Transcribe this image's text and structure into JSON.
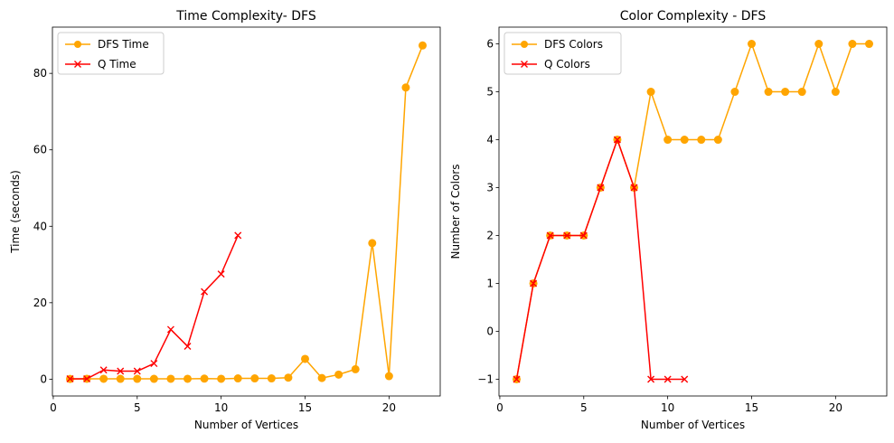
{
  "chart_data": [
    {
      "type": "line",
      "title": "Time Complexity- DFS",
      "xlabel": "Number of Vertices",
      "ylabel": "Time (seconds)",
      "xlim": [
        -0.05,
        23.05
      ],
      "ylim": [
        -4.4,
        92.1
      ],
      "xticks": [
        0,
        5,
        10,
        15,
        20
      ],
      "yticks": [
        0,
        20,
        40,
        60,
        80
      ],
      "grid": false,
      "legend_position": "upper-left",
      "series": [
        {
          "name": "DFS Time",
          "color": "#ffa500",
          "marker": "circle",
          "x": [
            1,
            2,
            3,
            4,
            5,
            6,
            7,
            8,
            9,
            10,
            11,
            12,
            13,
            14,
            15,
            16,
            17,
            18,
            19,
            20,
            21,
            22
          ],
          "y": [
            0.05,
            0.1,
            0.1,
            0.08,
            0.08,
            0.08,
            0.1,
            0.1,
            0.15,
            0.1,
            0.2,
            0.2,
            0.2,
            0.4,
            5.3,
            0.3,
            1.2,
            2.6,
            35.6,
            0.8,
            76.3,
            87.3
          ]
        },
        {
          "name": "Q Time",
          "color": "#ff0000",
          "marker": "x",
          "x": [
            1,
            2,
            3,
            4,
            5,
            6,
            7,
            8,
            9,
            10,
            11
          ],
          "y": [
            0.1,
            0.1,
            2.4,
            2.1,
            2.1,
            4.1,
            13.0,
            8.6,
            22.9,
            27.5,
            37.6
          ]
        }
      ]
    },
    {
      "type": "line",
      "title": "Color Complexity - DFS",
      "xlabel": "Number of Vertices",
      "ylabel": "Number of Colors",
      "xlim": [
        -0.05,
        23.05
      ],
      "ylim": [
        -1.35,
        6.35
      ],
      "xticks": [
        0,
        5,
        10,
        15,
        20
      ],
      "yticks": [
        -1,
        0,
        1,
        2,
        3,
        4,
        5,
        6
      ],
      "grid": false,
      "legend_position": "upper-left",
      "series": [
        {
          "name": "DFS Colors",
          "color": "#ffa500",
          "marker": "circle",
          "x": [
            1,
            2,
            3,
            4,
            5,
            6,
            7,
            8,
            9,
            10,
            11,
            12,
            13,
            14,
            15,
            16,
            17,
            18,
            19,
            20,
            21,
            22
          ],
          "y": [
            -1,
            1,
            2,
            2,
            2,
            3,
            4,
            3,
            5,
            4,
            4,
            4,
            4,
            5,
            6,
            5,
            5,
            5,
            6,
            5,
            6,
            6
          ]
        },
        {
          "name": "Q Colors",
          "color": "#ff0000",
          "marker": "x",
          "x": [
            1,
            2,
            3,
            4,
            5,
            6,
            7,
            8,
            9,
            10,
            11
          ],
          "y": [
            -1,
            1,
            2,
            2,
            2,
            3,
            4,
            3,
            -1,
            -1,
            -1
          ]
        }
      ]
    }
  ]
}
